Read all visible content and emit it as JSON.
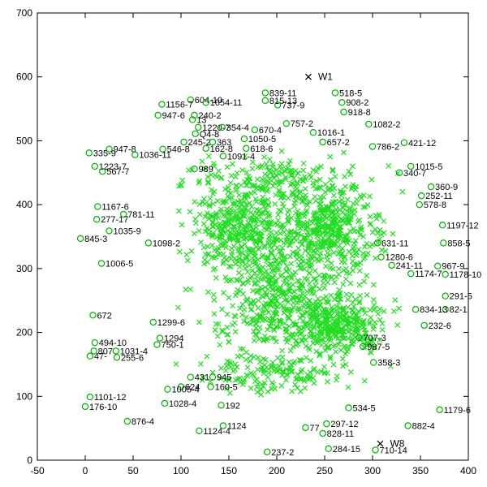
{
  "chart_data": {
    "type": "scatter",
    "title": "",
    "xlabel": "",
    "ylabel": "",
    "xlim": [
      -50,
      400
    ],
    "ylim": [
      0,
      700
    ],
    "xticks": [
      -50,
      0,
      50,
      100,
      150,
      200,
      250,
      300,
      350,
      400
    ],
    "yticks": [
      0,
      100,
      200,
      300,
      400,
      500,
      600,
      700
    ],
    "grid": false,
    "legend": "none",
    "colors": {
      "circle": "#00b000",
      "cross": "#22dd22",
      "reference": "#000000",
      "axis": "#000000"
    },
    "reference_points": [
      {
        "label": "W1",
        "x": 233,
        "y": 600
      },
      {
        "label": "W8",
        "x": 308,
        "y": 26
      }
    ],
    "labeled_points": [
      {
        "label": "839-11",
        "x": 188,
        "y": 575
      },
      {
        "label": "815-13",
        "x": 188,
        "y": 563
      },
      {
        "label": "518-5",
        "x": 261,
        "y": 575
      },
      {
        "label": "604-10",
        "x": 110,
        "y": 564
      },
      {
        "label": "1054-11",
        "x": 126,
        "y": 560
      },
      {
        "label": "1156-7",
        "x": 80,
        "y": 557
      },
      {
        "label": "737-9",
        "x": 201,
        "y": 556
      },
      {
        "label": "908-2",
        "x": 268,
        "y": 560
      },
      {
        "label": "918-8",
        "x": 270,
        "y": 545
      },
      {
        "label": "947-6",
        "x": 76,
        "y": 540
      },
      {
        "label": "240-2",
        "x": 114,
        "y": 540
      },
      {
        "label": "13",
        "x": 112,
        "y": 533
      },
      {
        "label": "1220-7",
        "x": 118,
        "y": 521
      },
      {
        "label": "354-4",
        "x": 143,
        "y": 521
      },
      {
        "label": "670-4",
        "x": 177,
        "y": 517
      },
      {
        "label": "757-2",
        "x": 210,
        "y": 527
      },
      {
        "label": "1082-2",
        "x": 296,
        "y": 526
      },
      {
        "label": "1016-1",
        "x": 238,
        "y": 513
      },
      {
        "label": "Q4-8",
        "x": 115,
        "y": 511
      },
      {
        "label": "245-2",
        "x": 103,
        "y": 498
      },
      {
        "label": "363",
        "x": 133,
        "y": 498
      },
      {
        "label": "1050-5",
        "x": 166,
        "y": 503
      },
      {
        "label": "657-2",
        "x": 248,
        "y": 498
      },
      {
        "label": "947-8",
        "x": 25,
        "y": 487
      },
      {
        "label": "546-8",
        "x": 81,
        "y": 487
      },
      {
        "label": "162-8",
        "x": 126,
        "y": 488
      },
      {
        "label": "618-6",
        "x": 168,
        "y": 488
      },
      {
        "label": "786-2",
        "x": 300,
        "y": 491
      },
      {
        "label": "421-12",
        "x": 333,
        "y": 497
      },
      {
        "label": "335-9",
        "x": 4,
        "y": 481
      },
      {
        "label": "1036-11",
        "x": 52,
        "y": 478
      },
      {
        "label": "1091-4",
        "x": 144,
        "y": 476
      },
      {
        "label": "1223-7",
        "x": 10,
        "y": 460
      },
      {
        "label": "567-7",
        "x": 18,
        "y": 452
      },
      {
        "label": "989",
        "x": 114,
        "y": 456
      },
      {
        "label": "1015-5",
        "x": 340,
        "y": 460
      },
      {
        "label": "340-7",
        "x": 328,
        "y": 450
      },
      {
        "label": "360-9",
        "x": 361,
        "y": 428
      },
      {
        "label": "252-11",
        "x": 351,
        "y": 414
      },
      {
        "label": "578-8",
        "x": 349,
        "y": 400
      },
      {
        "label": "1167-6",
        "x": 13,
        "y": 397
      },
      {
        "label": "781-11",
        "x": 40,
        "y": 385
      },
      {
        "label": "277-17",
        "x": 12,
        "y": 377
      },
      {
        "label": "1035-9",
        "x": 25,
        "y": 359
      },
      {
        "label": "845-3",
        "x": -5,
        "y": 347
      },
      {
        "label": "1098-2",
        "x": 66,
        "y": 340
      },
      {
        "label": "1197-12",
        "x": 373,
        "y": 368
      },
      {
        "label": "858-5",
        "x": 374,
        "y": 340
      },
      {
        "label": "631-11",
        "x": 305,
        "y": 340
      },
      {
        "label": "1006-5",
        "x": 17,
        "y": 308
      },
      {
        "label": "1280-6",
        "x": 309,
        "y": 318
      },
      {
        "label": "967-9",
        "x": 368,
        "y": 304
      },
      {
        "label": "1178-10",
        "x": 376,
        "y": 291
      },
      {
        "label": "1174-7",
        "x": 340,
        "y": 292
      },
      {
        "label": "241-11",
        "x": 320,
        "y": 305
      },
      {
        "label": "291-5",
        "x": 376,
        "y": 257
      },
      {
        "label": "82-1",
        "x": 376,
        "y": 236
      },
      {
        "label": "834-13",
        "x": 345,
        "y": 236
      },
      {
        "label": "232-6",
        "x": 354,
        "y": 211
      },
      {
        "label": "672",
        "x": 8,
        "y": 227
      },
      {
        "label": "1299-6",
        "x": 71,
        "y": 216
      },
      {
        "label": "494-10",
        "x": 10,
        "y": 184
      },
      {
        "label": "1031-4",
        "x": 32,
        "y": 171
      },
      {
        "label": "255-6",
        "x": 33,
        "y": 161
      },
      {
        "label": "807",
        "x": 9,
        "y": 171
      },
      {
        "label": "47-",
        "x": 5,
        "y": 163
      },
      {
        "label": "1294",
        "x": 78,
        "y": 191
      },
      {
        "label": "750-1",
        "x": 75,
        "y": 181
      },
      {
        "label": "707-3",
        "x": 286,
        "y": 192
      },
      {
        "label": "987-5",
        "x": 290,
        "y": 178
      },
      {
        "label": "358-3",
        "x": 301,
        "y": 153
      },
      {
        "label": "431",
        "x": 110,
        "y": 130
      },
      {
        "label": "945",
        "x": 133,
        "y": 130
      },
      {
        "label": "624",
        "x": 100,
        "y": 115
      },
      {
        "label": "1101-12",
        "x": 5,
        "y": 99
      },
      {
        "label": "1005-4",
        "x": 86,
        "y": 111
      },
      {
        "label": "160-5",
        "x": 131,
        "y": 115
      },
      {
        "label": "176-10",
        "x": 0,
        "y": 84
      },
      {
        "label": "1028-4",
        "x": 83,
        "y": 89
      },
      {
        "label": "192",
        "x": 142,
        "y": 86
      },
      {
        "label": "534-5",
        "x": 275,
        "y": 82
      },
      {
        "label": "1179-6",
        "x": 370,
        "y": 79
      },
      {
        "label": "876-4",
        "x": 44,
        "y": 61
      },
      {
        "label": "882-4",
        "x": 337,
        "y": 54
      },
      {
        "label": "297-12",
        "x": 252,
        "y": 57
      },
      {
        "label": "77",
        "x": 230,
        "y": 51
      },
      {
        "label": "1124-4",
        "x": 119,
        "y": 46
      },
      {
        "label": "1124",
        "x": 144,
        "y": 54
      },
      {
        "label": "828-11",
        "x": 248,
        "y": 42
      },
      {
        "label": "237-2",
        "x": 190,
        "y": 13
      },
      {
        "label": "284-15",
        "x": 254,
        "y": 18
      },
      {
        "label": "710-14",
        "x": 303,
        "y": 16
      }
    ]
  }
}
